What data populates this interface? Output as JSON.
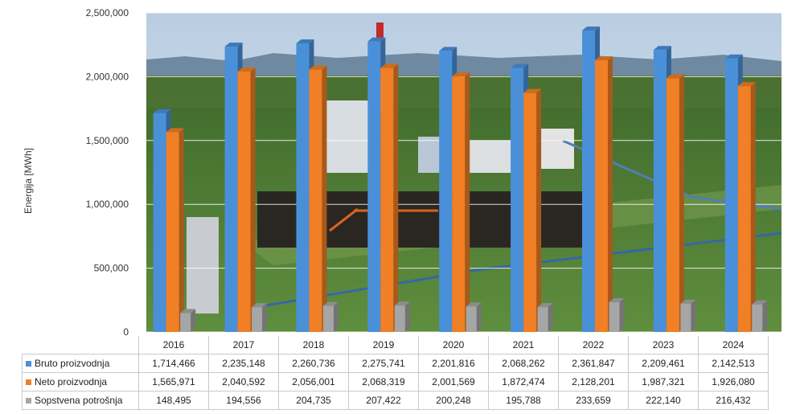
{
  "chart_data": {
    "type": "bar",
    "ylabel": "Energija [MWh]",
    "ylim": [
      0,
      2500000
    ],
    "y_ticks": [
      "0",
      "500,000",
      "1,000,000",
      "1,500,000",
      "2,000,000",
      "2,500,000"
    ],
    "categories": [
      "2016",
      "2017",
      "2018",
      "2019",
      "2020",
      "2021",
      "2022",
      "2023",
      "2024"
    ],
    "grid": true,
    "legend": "data-table-below",
    "series": [
      {
        "name": "Bruto proizvodnja",
        "color": "#4a90d9",
        "values": [
          1714466,
          2235148,
          2260736,
          2275741,
          2201816,
          2068262,
          2361847,
          2209461,
          2142513
        ],
        "labels": [
          "1,714,466",
          "2,235,148",
          "2,260,736",
          "2,275,741",
          "2,201,816",
          "2,068,262",
          "2,361,847",
          "2,209,461",
          "2,142,513"
        ]
      },
      {
        "name": "Neto proizvodnja",
        "color": "#f07f25",
        "values": [
          1565971,
          2040592,
          2056001,
          2068319,
          2001569,
          1872474,
          2128201,
          1987321,
          1926080
        ],
        "labels": [
          "1,565,971",
          "2,040,592",
          "2,056,001",
          "2,068,319",
          "2,001,569",
          "1,872,474",
          "2,128,201",
          "1,987,321",
          "1,926,080"
        ]
      },
      {
        "name": "Sopstvena potrošnja",
        "color": "#a6a6a6",
        "values": [
          148495,
          194556,
          204735,
          207422,
          200248,
          195788,
          233659,
          222140,
          216432
        ],
        "labels": [
          "148,495",
          "194,556",
          "204,735",
          "207,422",
          "200,248",
          "195,788",
          "233,659",
          "222,140",
          "216,432"
        ]
      }
    ]
  }
}
